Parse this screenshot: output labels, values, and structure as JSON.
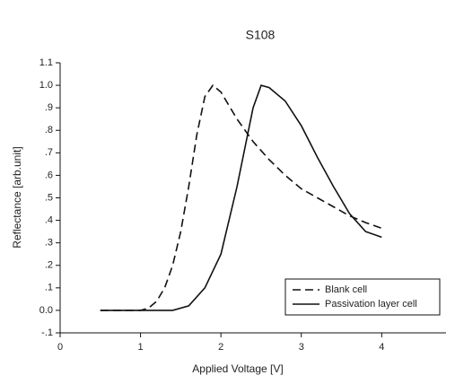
{
  "chart_data": {
    "type": "line",
    "title": "S108",
    "x_label": "Applied Voltage [V]",
    "y_label": "Reflectance [arb.unit]",
    "xlim": [
      0,
      4.8
    ],
    "xticks": [
      0,
      1,
      2,
      3,
      4
    ],
    "ylim": [
      -0.1,
      1.1
    ],
    "yticks": [
      {
        "value": -0.1,
        "label": "-.1"
      },
      {
        "value": 0,
        "label": "0.0"
      },
      {
        "value": 0.1,
        "label": ".1"
      },
      {
        "value": 0.2,
        "label": ".2"
      },
      {
        "value": 0.3,
        "label": ".3"
      },
      {
        "value": 0.4,
        "label": ".4"
      },
      {
        "value": 0.5,
        "label": ".5"
      },
      {
        "value": 0.6,
        "label": ".6"
      },
      {
        "value": 0.7,
        "label": ".7"
      },
      {
        "value": 0.8,
        "label": ".8"
      },
      {
        "value": 0.9,
        "label": ".9"
      },
      {
        "value": 1.0,
        "label": "1.0"
      },
      {
        "value": 1.1,
        "label": "1.1"
      }
    ],
    "legend": "lower right",
    "series": [
      {
        "name": "Blank cell",
        "color": "#111111",
        "line_style": "dashed",
        "x": [
          0.5,
          1.0,
          1.1,
          1.2,
          1.3,
          1.4,
          1.5,
          1.6,
          1.7,
          1.8,
          1.9,
          2.0,
          2.2,
          2.4,
          2.6,
          2.8,
          3.0,
          3.2,
          3.4,
          3.6,
          3.8,
          4.0
        ],
        "values": [
          0,
          0,
          0.01,
          0.04,
          0.1,
          0.2,
          0.35,
          0.55,
          0.78,
          0.95,
          1.0,
          0.97,
          0.85,
          0.75,
          0.67,
          0.6,
          0.54,
          0.5,
          0.46,
          0.42,
          0.39,
          0.365
        ]
      },
      {
        "name": "Passivation layer cell",
        "color": "#111111",
        "line_style": "solid",
        "x": [
          0.5,
          1.4,
          1.6,
          1.8,
          2.0,
          2.2,
          2.4,
          2.5,
          2.6,
          2.8,
          3.0,
          3.2,
          3.4,
          3.6,
          3.8,
          4.0
        ],
        "values": [
          0,
          0,
          0.02,
          0.1,
          0.25,
          0.55,
          0.9,
          1.0,
          0.99,
          0.93,
          0.82,
          0.68,
          0.55,
          0.43,
          0.35,
          0.325
        ]
      }
    ]
  }
}
